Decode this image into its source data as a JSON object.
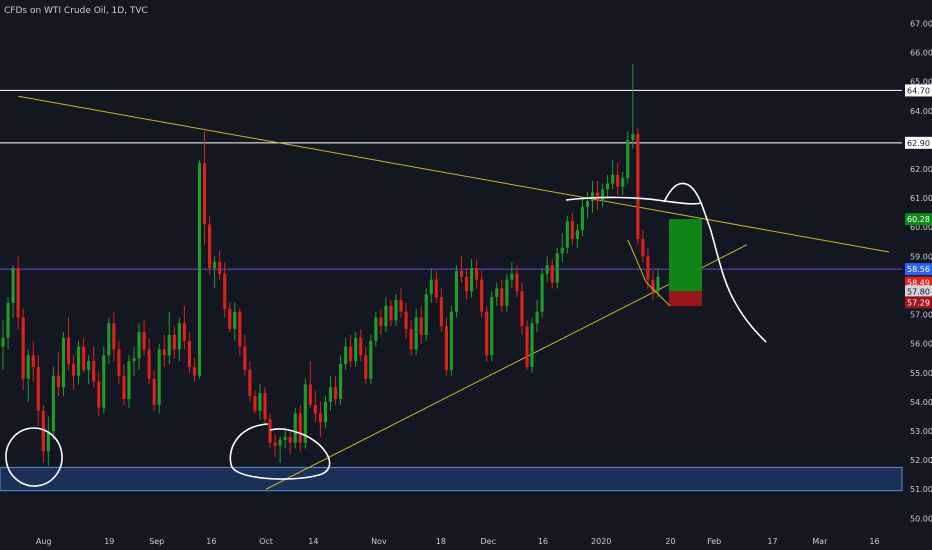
{
  "header": {
    "title": "CFDs on WTI Crude Oil, 1D, TVC"
  },
  "colors": {
    "background": "#131722",
    "up": "#26a69a",
    "up_fill": "#1e9e28",
    "down": "#e0201a",
    "trendline": "#c9b22a",
    "white_line": "#ffffff",
    "blue_line": "#5a4fd6",
    "support_zone": "#1d3a6e",
    "long_target": "#0f8a18",
    "long_stop": "#a1141a"
  },
  "chart_data": {
    "type": "candlestick",
    "title": "CFDs on WTI Crude Oil, 1D, TVC",
    "ylim": [
      49.6,
      67.6
    ],
    "y_ticks": [
      "50.00",
      "51.00",
      "52.00",
      "53.00",
      "54.00",
      "55.00",
      "56.00",
      "57.00",
      "58.00",
      "59.00",
      "60.00",
      "61.00",
      "62.00",
      "63.00",
      "64.00",
      "65.00",
      "66.00",
      "67.00"
    ],
    "x_ticks": [
      "Aug",
      "19",
      "Sep",
      "16",
      "Oct",
      "14",
      "Nov",
      "18",
      "Dec",
      "16",
      "2020",
      "20",
      "Feb",
      "17",
      "Mar",
      "16"
    ],
    "price_labels": [
      {
        "text": "64.70",
        "value": 64.7,
        "color": "#ffffff",
        "text_color": "#131722"
      },
      {
        "text": "62.90",
        "value": 62.9,
        "color": "#ffffff",
        "text_color": "#131722"
      },
      {
        "text": "60.28",
        "value": 60.28,
        "color": "#0f8a18",
        "text_color": "#ffffff"
      },
      {
        "text": "58.56",
        "value": 58.56,
        "color": "#2962ff",
        "text_color": "#ffffff"
      },
      {
        "text": "58.49",
        "value": 58.49,
        "color": "#e0201a",
        "text_color": "#ffffff",
        "shown_at": 58.1
      },
      {
        "text": "57.80",
        "value": 57.8,
        "color": "#d1d4dc",
        "text_color": "#131722"
      },
      {
        "text": "57.29",
        "value": 57.29,
        "color": "#a1141a",
        "text_color": "#ffffff",
        "shown_at": 57.42
      }
    ],
    "horizontal_levels": [
      64.7,
      62.9,
      58.56
    ],
    "support_zone": [
      50.95,
      51.75
    ],
    "descending_trendline": [
      [
        "2019-07-25",
        64.5
      ],
      [
        "2020-03-20",
        59.15
      ]
    ],
    "ascending_trendline": [
      [
        "2019-10-01",
        51.0
      ],
      [
        "2020-02-10",
        59.4
      ]
    ],
    "long_position": {
      "entry": 57.8,
      "target": 60.28,
      "stop": 57.29
    },
    "series": [
      {
        "values": [
          [
            55.9,
            56.8,
            55.1,
            56.2
          ],
          [
            56.2,
            57.6,
            55.8,
            57.4
          ],
          [
            57.4,
            58.7,
            56.9,
            58.6
          ],
          [
            58.6,
            59.0,
            56.5,
            56.9
          ],
          [
            56.9,
            57.2,
            54.4,
            54.8
          ],
          [
            54.8,
            55.8,
            54.0,
            55.6
          ],
          [
            55.6,
            56.1,
            54.7,
            55.2
          ],
          [
            55.2,
            55.6,
            53.2,
            53.7
          ],
          [
            53.7,
            53.9,
            51.9,
            52.3
          ],
          [
            52.3,
            53.5,
            51.8,
            53.0
          ],
          [
            53.0,
            55.2,
            52.7,
            54.9
          ],
          [
            54.9,
            55.7,
            54.2,
            54.5
          ],
          [
            54.5,
            56.4,
            54.2,
            56.2
          ],
          [
            56.2,
            56.9,
            55.1,
            55.3
          ],
          [
            55.3,
            55.6,
            54.4,
            54.9
          ],
          [
            54.9,
            56.1,
            54.6,
            55.9
          ],
          [
            55.9,
            56.2,
            55.0,
            55.1
          ],
          [
            55.1,
            55.6,
            54.6,
            55.4
          ],
          [
            55.4,
            55.9,
            54.5,
            54.7
          ],
          [
            54.7,
            55.0,
            53.5,
            53.8
          ],
          [
            53.8,
            55.9,
            53.6,
            55.6
          ],
          [
            55.6,
            56.9,
            55.3,
            56.7
          ],
          [
            56.7,
            57.1,
            55.4,
            55.8
          ],
          [
            55.8,
            56.1,
            54.6,
            54.9
          ],
          [
            54.9,
            55.3,
            53.9,
            54.1
          ],
          [
            54.1,
            55.6,
            53.8,
            55.4
          ],
          [
            55.4,
            55.9,
            54.9,
            55.5
          ],
          [
            55.5,
            56.7,
            55.1,
            56.4
          ],
          [
            56.4,
            56.8,
            55.6,
            55.8
          ],
          [
            55.8,
            56.2,
            54.6,
            54.8
          ],
          [
            54.8,
            55.1,
            53.7,
            53.9
          ],
          [
            53.9,
            56.0,
            53.6,
            55.8
          ],
          [
            55.8,
            56.3,
            55.2,
            55.6
          ],
          [
            55.6,
            57.1,
            55.3,
            56.3
          ],
          [
            56.3,
            56.6,
            55.5,
            55.8
          ],
          [
            55.8,
            56.9,
            55.4,
            56.7
          ],
          [
            56.7,
            57.3,
            55.8,
            56.1
          ],
          [
            56.1,
            56.4,
            55.0,
            55.2
          ],
          [
            55.2,
            55.5,
            54.7,
            54.9
          ],
          [
            54.9,
            62.3,
            54.8,
            62.2
          ],
          [
            62.2,
            63.3,
            59.4,
            60.1
          ],
          [
            60.1,
            60.4,
            58.4,
            58.6
          ],
          [
            58.6,
            59.0,
            57.9,
            58.8
          ],
          [
            58.8,
            59.2,
            58.2,
            58.4
          ],
          [
            58.4,
            58.8,
            56.9,
            57.2
          ],
          [
            57.2,
            57.4,
            56.4,
            56.5
          ],
          [
            56.5,
            57.4,
            56.1,
            57.1
          ],
          [
            57.1,
            57.2,
            55.6,
            55.9
          ],
          [
            55.9,
            56.3,
            54.9,
            55.1
          ],
          [
            55.1,
            55.4,
            54.0,
            54.2
          ],
          [
            54.2,
            54.4,
            53.6,
            53.7
          ],
          [
            53.7,
            54.6,
            53.4,
            54.3
          ],
          [
            54.3,
            54.5,
            53.2,
            53.4
          ],
          [
            53.4,
            53.6,
            52.4,
            52.6
          ],
          [
            52.6,
            52.9,
            52.1,
            52.5
          ],
          [
            52.5,
            52.8,
            51.9,
            52.7
          ],
          [
            52.7,
            53.1,
            52.4,
            52.8
          ],
          [
            52.8,
            53.0,
            52.2,
            52.6
          ],
          [
            52.6,
            53.8,
            52.4,
            53.6
          ],
          [
            53.6,
            53.9,
            52.3,
            52.6
          ],
          [
            52.6,
            54.8,
            52.4,
            54.6
          ],
          [
            54.6,
            55.4,
            53.8,
            53.9
          ],
          [
            53.9,
            54.4,
            53.3,
            53.6
          ],
          [
            53.6,
            54.0,
            52.8,
            53.3
          ],
          [
            53.3,
            54.2,
            53.1,
            54.0
          ],
          [
            54.0,
            54.9,
            53.7,
            54.5
          ],
          [
            54.5,
            54.9,
            53.9,
            54.1
          ],
          [
            54.1,
            55.6,
            53.9,
            55.3
          ],
          [
            55.3,
            56.2,
            55.1,
            55.9
          ],
          [
            55.9,
            56.3,
            55.2,
            55.4
          ],
          [
            55.4,
            56.4,
            55.2,
            56.2
          ],
          [
            56.2,
            56.5,
            55.4,
            55.6
          ],
          [
            55.6,
            55.9,
            54.6,
            54.8
          ],
          [
            54.8,
            56.3,
            54.6,
            56.1
          ],
          [
            56.1,
            57.1,
            55.9,
            56.9
          ],
          [
            56.9,
            57.2,
            56.3,
            56.6
          ],
          [
            56.6,
            57.6,
            56.4,
            57.3
          ],
          [
            57.3,
            57.5,
            56.6,
            56.8
          ],
          [
            56.8,
            57.7,
            56.6,
            57.5
          ],
          [
            57.5,
            57.9,
            56.9,
            57.1
          ],
          [
            57.1,
            57.4,
            56.2,
            56.5
          ],
          [
            56.5,
            56.8,
            55.6,
            55.8
          ],
          [
            55.8,
            57.2,
            55.6,
            56.9
          ],
          [
            56.9,
            57.3,
            56.0,
            56.3
          ],
          [
            56.3,
            57.9,
            56.1,
            57.7
          ],
          [
            57.7,
            58.6,
            57.4,
            58.2
          ],
          [
            58.2,
            58.5,
            57.4,
            57.6
          ],
          [
            57.6,
            57.9,
            56.4,
            56.6
          ],
          [
            56.6,
            56.9,
            54.9,
            55.1
          ],
          [
            55.1,
            57.3,
            54.9,
            57.1
          ],
          [
            57.1,
            58.7,
            56.9,
            58.5
          ],
          [
            58.5,
            59.0,
            58.1,
            58.3
          ],
          [
            58.3,
            58.6,
            57.5,
            57.8
          ],
          [
            57.8,
            58.9,
            57.6,
            58.6
          ],
          [
            58.6,
            58.9,
            57.9,
            58.2
          ],
          [
            58.2,
            58.5,
            56.9,
            57.1
          ],
          [
            57.1,
            57.3,
            55.4,
            55.6
          ],
          [
            55.6,
            57.8,
            55.4,
            57.6
          ],
          [
            57.6,
            58.1,
            57.3,
            57.9
          ],
          [
            57.9,
            58.2,
            57.1,
            57.3
          ],
          [
            57.3,
            58.4,
            57.1,
            58.2
          ],
          [
            58.2,
            58.8,
            57.9,
            58.4
          ],
          [
            58.4,
            58.7,
            57.6,
            57.8
          ],
          [
            57.8,
            58.1,
            56.3,
            56.6
          ],
          [
            56.6,
            56.8,
            55.1,
            55.2
          ],
          [
            55.2,
            56.9,
            55.0,
            56.7
          ],
          [
            56.7,
            57.5,
            56.4,
            57.1
          ],
          [
            57.1,
            58.6,
            56.9,
            58.4
          ],
          [
            58.4,
            59.0,
            58.1,
            58.7
          ],
          [
            58.7,
            58.9,
            57.9,
            58.1
          ],
          [
            58.1,
            59.3,
            57.9,
            59.1
          ],
          [
            59.1,
            59.8,
            58.8,
            59.3
          ],
          [
            59.3,
            60.4,
            59.1,
            60.2
          ],
          [
            60.2,
            60.5,
            59.4,
            59.6
          ],
          [
            59.6,
            60.1,
            59.3,
            59.9
          ],
          [
            59.9,
            61.0,
            59.7,
            60.7
          ],
          [
            60.7,
            61.2,
            60.3,
            60.9
          ],
          [
            60.9,
            61.6,
            60.5,
            61.2
          ],
          [
            61.2,
            61.6,
            60.6,
            60.9
          ],
          [
            60.9,
            61.5,
            60.7,
            61.3
          ],
          [
            61.3,
            61.8,
            61.0,
            61.5
          ],
          [
            61.5,
            62.3,
            61.3,
            61.8
          ],
          [
            61.8,
            62.2,
            61.1,
            61.4
          ],
          [
            61.4,
            61.9,
            61.1,
            61.7
          ],
          [
            61.7,
            63.3,
            61.5,
            63.0
          ],
          [
            63.0,
            65.6,
            62.7,
            63.2
          ],
          [
            63.2,
            63.4,
            59.4,
            59.6
          ],
          [
            59.6,
            59.9,
            58.8,
            59.0
          ],
          [
            59.0,
            59.3,
            57.9,
            58.2
          ],
          [
            58.2,
            58.5,
            57.5,
            57.8
          ],
          [
            57.8,
            58.6,
            57.6,
            58.3
          ]
        ]
      }
    ]
  }
}
